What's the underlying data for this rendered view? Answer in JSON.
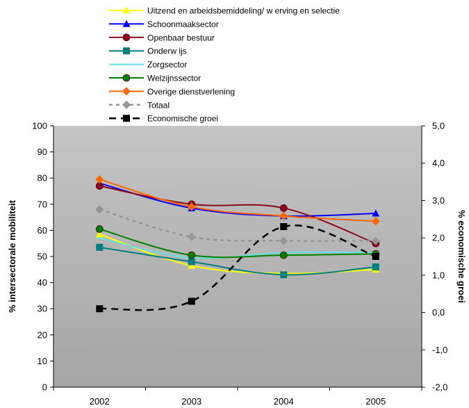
{
  "chart_data": {
    "type": "line",
    "categories": [
      "2002",
      "2003",
      "2004",
      "2005"
    ],
    "ylabel": "% intersectorale mobiliteit",
    "y2label": "% economische groei",
    "ylim": [
      0,
      100
    ],
    "y2lim": [
      -2.0,
      5.0
    ],
    "yticks": [
      "0",
      "10",
      "20",
      "30",
      "40",
      "50",
      "60",
      "70",
      "80",
      "90",
      "100"
    ],
    "y2ticks": [
      "-2,0",
      "-1,0",
      "0,0",
      "1,0",
      "2,0",
      "3,0",
      "4,0",
      "5,0"
    ],
    "legend_position": "top",
    "grid": false,
    "plot_background": "gradient-gray",
    "series": [
      {
        "name": "Uitzend en arbeidsbemiddeling/ w erving en selectie",
        "color": "#ffff00",
        "marker": "triangle",
        "dash": "solid",
        "axis": "left",
        "values": [
          58.5,
          46.5,
          43.5,
          45
        ]
      },
      {
        "name": "Schoonmaaksector",
        "color": "#0000ff",
        "marker": "triangle",
        "dash": "solid",
        "axis": "left",
        "values": [
          78,
          68.5,
          65.5,
          66.5
        ]
      },
      {
        "name": "Openbaar bestuur",
        "color": "#8b0a1e",
        "marker": "circle",
        "dash": "solid",
        "axis": "left",
        "values": [
          77,
          70,
          68.5,
          55
        ]
      },
      {
        "name": "Onderw ijs",
        "color": "#007f7f",
        "marker": "square",
        "dash": "solid",
        "axis": "left",
        "values": [
          53.5,
          48,
          43,
          46
        ]
      },
      {
        "name": "Zorgsector",
        "color": "#66e0e0",
        "marker": "dash",
        "dash": "solid",
        "axis": "left",
        "values": [
          57,
          49.5,
          51.5,
          51.5
        ]
      },
      {
        "name": "Welzijnssector",
        "color": "#008000",
        "marker": "circle",
        "dash": "solid",
        "axis": "left",
        "values": [
          60.5,
          50.5,
          50.5,
          51
        ]
      },
      {
        "name": "Overige dienstverlening",
        "color": "#ff6600",
        "marker": "diamond",
        "dash": "solid",
        "axis": "left",
        "values": [
          79.5,
          69,
          65.5,
          63.5
        ]
      },
      {
        "name": "Totaal",
        "color": "#969696",
        "marker": "diamond",
        "dash": "dotted",
        "axis": "left",
        "values": [
          68,
          57.5,
          56,
          56
        ]
      },
      {
        "name": "Economische groei",
        "color": "#000000",
        "marker": "square",
        "dash": "dashed",
        "axis": "right",
        "values": [
          0.1,
          0.3,
          2.3,
          1.5
        ]
      }
    ]
  }
}
